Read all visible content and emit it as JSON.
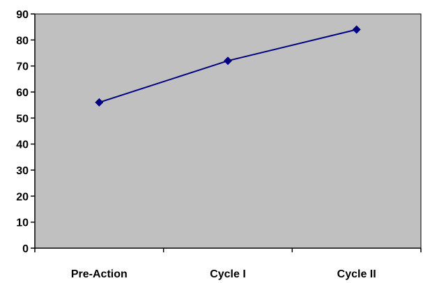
{
  "chart_data": {
    "type": "line",
    "title": "",
    "xlabel": "",
    "ylabel": "",
    "categories": [
      "Pre-Action",
      "Cycle I",
      "Cycle II"
    ],
    "series": [
      {
        "values": [
          56,
          72,
          84
        ]
      }
    ],
    "ylim": [
      0,
      90
    ],
    "y_ticks": [
      0,
      10,
      20,
      30,
      40,
      50,
      60,
      70,
      80,
      90
    ],
    "grid": false,
    "legend": "none",
    "colors": {
      "plot_background": "#c0c0c0",
      "line": "#000080",
      "marker": "#000080",
      "axis": "#000000"
    }
  }
}
